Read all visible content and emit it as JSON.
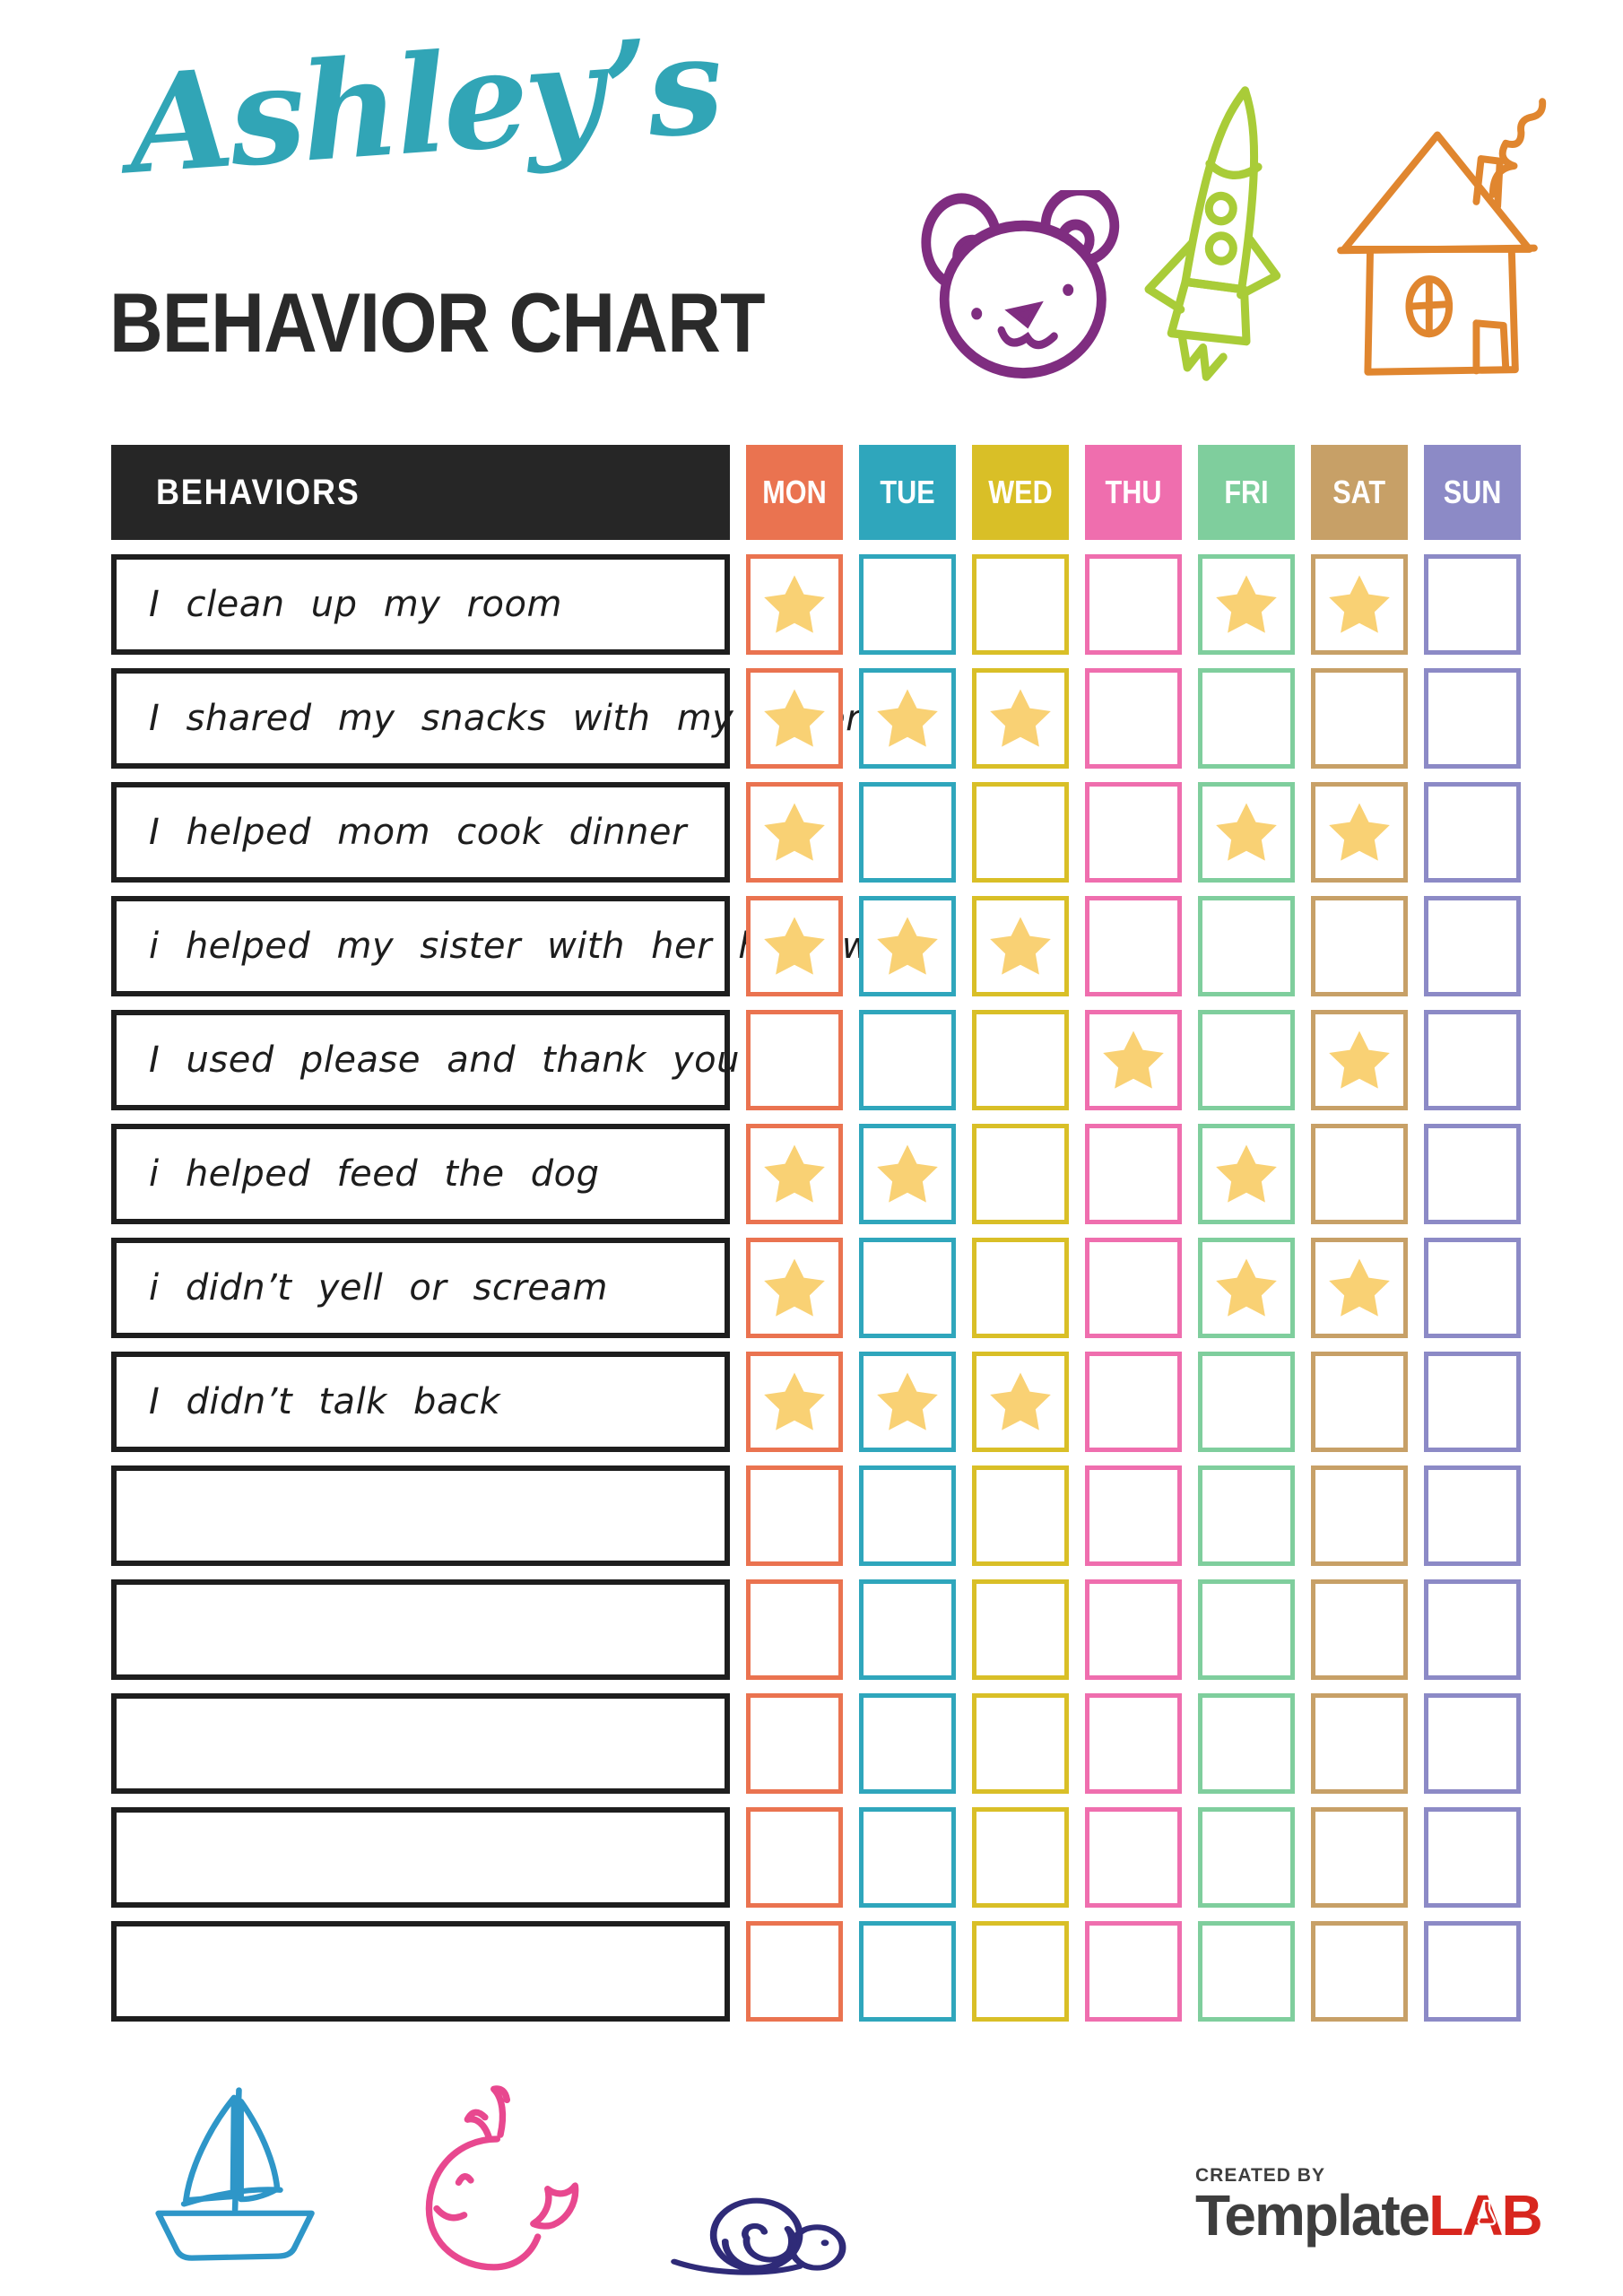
{
  "page": {
    "title_name": "Ashley’s",
    "title_sub": "BEHAVIOR CHART",
    "title_name_color": "#31a5b6",
    "title_sub_color": "#2a2a2a"
  },
  "table": {
    "behaviors_header": "BEHAVIORS",
    "header_bg": "#262626",
    "star_color": "#f9d174",
    "days": [
      {
        "label": "MON",
        "color": "#ea7350"
      },
      {
        "label": "TUE",
        "color": "#2fa6bc"
      },
      {
        "label": "WED",
        "color": "#d9bf27"
      },
      {
        "label": "THU",
        "color": "#ef6eae"
      },
      {
        "label": "FRI",
        "color": "#7fce9d"
      },
      {
        "label": "SAT",
        "color": "#c7a067"
      },
      {
        "label": "SUN",
        "color": "#8c8ac6"
      }
    ],
    "rows": [
      {
        "behavior": "I clean up my room",
        "stars": [
          true,
          false,
          false,
          false,
          true,
          true,
          false
        ]
      },
      {
        "behavior": "I shared my snacks with my sister",
        "stars": [
          true,
          true,
          true,
          false,
          false,
          false,
          false
        ]
      },
      {
        "behavior": "I helped mom cook dinner",
        "stars": [
          true,
          false,
          false,
          false,
          true,
          true,
          false
        ]
      },
      {
        "behavior": "i helped my sister with her homework",
        "stars": [
          true,
          true,
          true,
          false,
          false,
          false,
          false
        ]
      },
      {
        "behavior": "I used please and thank you",
        "stars": [
          false,
          false,
          false,
          true,
          false,
          true,
          false
        ]
      },
      {
        "behavior": "i helped feed the dog",
        "stars": [
          true,
          true,
          false,
          false,
          true,
          false,
          false
        ]
      },
      {
        "behavior": "i didn’t yell or scream",
        "stars": [
          true,
          false,
          false,
          false,
          true,
          true,
          false
        ]
      },
      {
        "behavior": "I didn’t talk back",
        "stars": [
          true,
          true,
          true,
          false,
          false,
          false,
          false
        ]
      },
      {
        "behavior": "",
        "stars": [
          false,
          false,
          false,
          false,
          false,
          false,
          false
        ]
      },
      {
        "behavior": "",
        "stars": [
          false,
          false,
          false,
          false,
          false,
          false,
          false
        ]
      },
      {
        "behavior": "",
        "stars": [
          false,
          false,
          false,
          false,
          false,
          false,
          false
        ]
      },
      {
        "behavior": "",
        "stars": [
          false,
          false,
          false,
          false,
          false,
          false,
          false
        ]
      },
      {
        "behavior": "",
        "stars": [
          false,
          false,
          false,
          false,
          false,
          false,
          false
        ]
      }
    ]
  },
  "doodles": {
    "bear": "#7f2d80",
    "rocket": "#a9cc38",
    "house": "#e0862f",
    "boat": "#2e96c8",
    "whale": "#e8488f",
    "snail": "#2f2b78"
  },
  "footer": {
    "created_by": "CREATED BY",
    "brand_name": "Template",
    "brand_suffix": "LAB"
  }
}
